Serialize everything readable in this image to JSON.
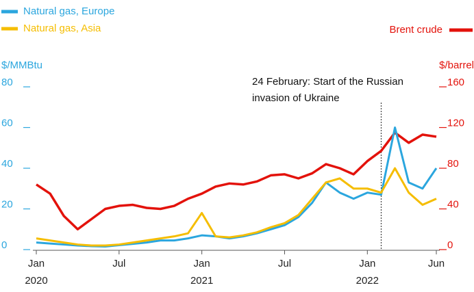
{
  "chart_data": {
    "type": "line",
    "legend_items_left": true,
    "y_axis_label": "$/MMBtu",
    "y2_axis_label": "$/barrel",
    "annotation": {
      "lines": [
        "24 February: Start of the Russian",
        "invasion of Ukraine"
      ],
      "x": "2022-02"
    },
    "x": [
      "2020-01",
      "2020-02",
      "2020-03",
      "2020-04",
      "2020-05",
      "2020-06",
      "2020-07",
      "2020-08",
      "2020-09",
      "2020-10",
      "2020-11",
      "2020-12",
      "2021-01",
      "2021-02",
      "2021-03",
      "2021-04",
      "2021-05",
      "2021-06",
      "2021-07",
      "2021-08",
      "2021-09",
      "2021-10",
      "2021-11",
      "2021-12",
      "2022-01",
      "2022-02",
      "2022-03",
      "2022-04",
      "2022-05",
      "2022-06"
    ],
    "xticks": [
      {
        "value": 0,
        "label": "Jan",
        "year": "2020"
      },
      {
        "value": 6,
        "label": "Jul"
      },
      {
        "value": 12,
        "label": "Jan",
        "year": "2021"
      },
      {
        "value": 18,
        "label": "Jul"
      },
      {
        "value": 24,
        "label": "Jan",
        "year": "2022"
      },
      {
        "value": 29,
        "label": "Jun"
      }
    ],
    "xlim": [
      0,
      29
    ],
    "ylim": [
      0,
      80
    ],
    "yticks": [
      0,
      20,
      40,
      60,
      80
    ],
    "y2lim": [
      0,
      160
    ],
    "y2ticks": [
      0,
      40,
      80,
      120,
      160
    ],
    "series": [
      {
        "name": "Natural gas, Europe",
        "color": "#2ba6de",
        "values": [
          3.5,
          3,
          2.5,
          2,
          1.7,
          1.5,
          2.2,
          2.8,
          3.5,
          4.5,
          4.5,
          5.5,
          7,
          6.5,
          5.5,
          6.5,
          8,
          10,
          12,
          16,
          23,
          33,
          28,
          25,
          28,
          27,
          60,
          33,
          30,
          40
        ]
      },
      {
        "name": "Natural gas, Asia",
        "color": "#f5bd00",
        "values": [
          5.5,
          4.5,
          3.5,
          2.5,
          2,
          2,
          2.5,
          3.5,
          4.5,
          5.5,
          6.5,
          8,
          18,
          6.5,
          6,
          7,
          8.5,
          11,
          13,
          17,
          25,
          33,
          35,
          30,
          30,
          28,
          40,
          28,
          22,
          25
        ]
      },
      {
        "name": "Brent crude",
        "color": "#e3120b",
        "axis": "y2",
        "values": [
          64,
          55,
          33,
          20,
          30,
          40,
          43,
          44,
          41,
          40,
          43,
          50,
          55,
          62,
          65,
          64,
          67,
          73,
          74,
          70,
          75,
          84,
          80,
          74,
          87,
          97,
          115,
          105,
          113,
          111
        ]
      }
    ]
  }
}
